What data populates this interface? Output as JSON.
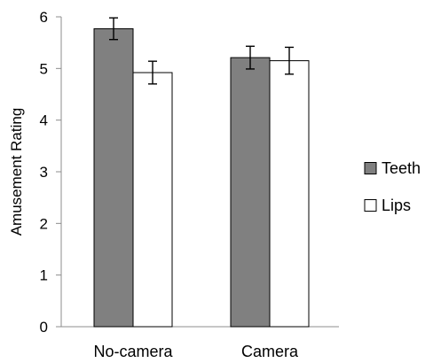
{
  "chart_data": {
    "type": "bar",
    "title": "",
    "xlabel": "",
    "ylabel": "Amusement Rating",
    "categories": [
      "No-camera",
      "Camera"
    ],
    "series": [
      {
        "name": "Teeth",
        "color": "#808080",
        "values": [
          5.77,
          5.21
        ],
        "errors": [
          0.21,
          0.22
        ]
      },
      {
        "name": "Lips",
        "color": "#ffffff",
        "values": [
          4.92,
          5.15
        ],
        "errors": [
          0.22,
          0.26
        ]
      }
    ],
    "ylim": [
      0,
      6
    ],
    "yticks": [
      0,
      1,
      2,
      3,
      4,
      5,
      6
    ],
    "grid": false,
    "legend_position": "right"
  }
}
